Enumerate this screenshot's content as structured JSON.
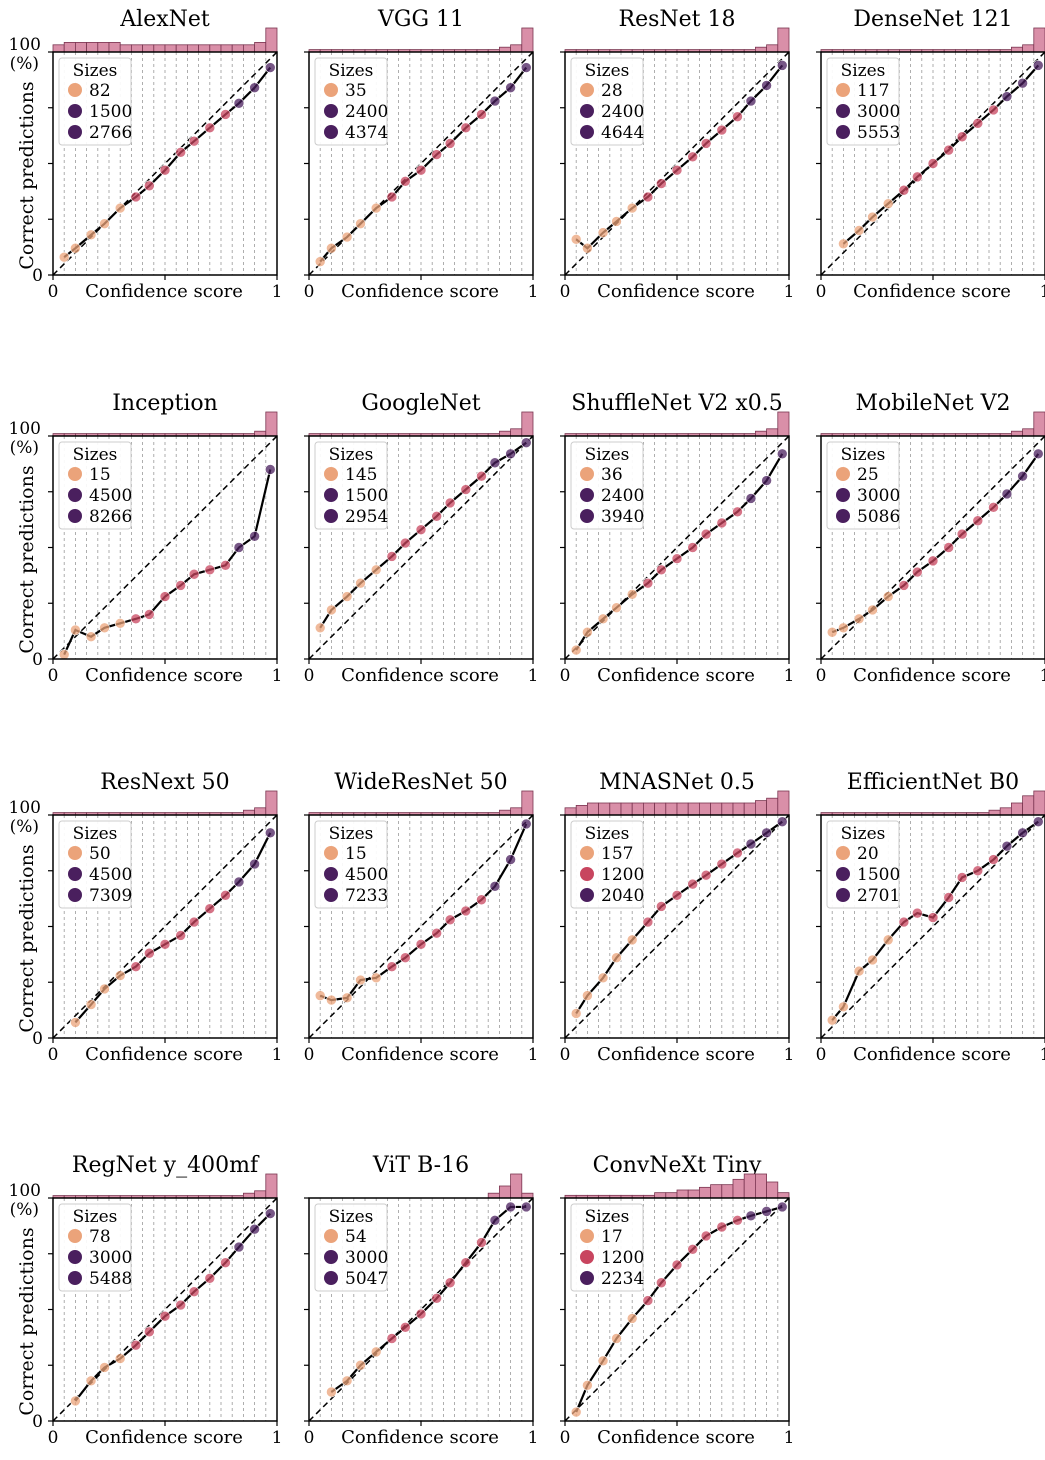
{
  "figure": {
    "common": {
      "xlabel": "Confidence score",
      "ylabel": "Correct predictions",
      "yunit": "(%)",
      "xtick_labels": [
        "0",
        "1"
      ],
      "ytick_labels": [
        "0",
        "100"
      ],
      "legend_title": "Sizes",
      "xlim": [
        0,
        1
      ],
      "ylim": [
        0,
        100
      ],
      "bins": 20
    },
    "colors": {
      "histogram": "#d98fa8",
      "curve": "#000000",
      "diagonal": "#000000",
      "bin_lines": "#9a9a9a",
      "size_small": "#eba37a",
      "size_mid": "#c8455f",
      "size_large": "#4a1f5e"
    }
  },
  "chart_data": [
    {
      "type": "line",
      "title": "AlexNet",
      "legend_sizes": [
        "82",
        "1500",
        "2766"
      ],
      "legend_colors": [
        "#eba37a",
        "#4a1f5e",
        "#4a1f5e"
      ],
      "x": [
        0.05,
        0.1,
        0.17,
        0.23,
        0.3,
        0.37,
        0.43,
        0.5,
        0.57,
        0.63,
        0.7,
        0.77,
        0.83,
        0.9,
        0.97
      ],
      "y": [
        8,
        12,
        18,
        23,
        30,
        35,
        40,
        47,
        55,
        60,
        66,
        72,
        77,
        84,
        93
      ],
      "hist": [
        3,
        4,
        4,
        4,
        4,
        4,
        3,
        3,
        3,
        3,
        3,
        3,
        3,
        3,
        3,
        3,
        3,
        3,
        4,
        10
      ]
    },
    {
      "type": "line",
      "title": "VGG 11",
      "legend_sizes": [
        "35",
        "2400",
        "4374"
      ],
      "legend_colors": [
        "#eba37a",
        "#4a1f5e",
        "#4a1f5e"
      ],
      "x": [
        0.05,
        0.1,
        0.17,
        0.23,
        0.3,
        0.37,
        0.43,
        0.5,
        0.57,
        0.63,
        0.7,
        0.77,
        0.83,
        0.9,
        0.97
      ],
      "y": [
        6,
        12,
        17,
        23,
        30,
        35,
        42,
        47,
        54,
        59,
        66,
        72,
        78,
        84,
        93
      ],
      "hist": [
        1,
        1,
        1,
        1,
        1,
        1,
        1,
        1,
        1,
        1,
        1,
        1,
        1,
        1,
        1,
        1,
        1,
        2,
        3,
        10
      ]
    },
    {
      "type": "line",
      "title": "ResNet 18",
      "legend_sizes": [
        "28",
        "2400",
        "4644"
      ],
      "legend_colors": [
        "#eba37a",
        "#4a1f5e",
        "#4a1f5e"
      ],
      "x": [
        0.05,
        0.1,
        0.17,
        0.23,
        0.3,
        0.37,
        0.43,
        0.5,
        0.57,
        0.63,
        0.7,
        0.77,
        0.83,
        0.9,
        0.97
      ],
      "y": [
        16,
        12,
        19,
        24,
        30,
        35,
        41,
        47,
        53,
        59,
        65,
        71,
        78,
        85,
        94
      ],
      "hist": [
        1,
        1,
        1,
        1,
        1,
        1,
        1,
        1,
        1,
        1,
        1,
        1,
        1,
        1,
        1,
        1,
        1,
        2,
        3,
        10
      ]
    },
    {
      "type": "line",
      "title": "DenseNet 121",
      "legend_sizes": [
        "117",
        "3000",
        "5553"
      ],
      "legend_colors": [
        "#eba37a",
        "#4a1f5e",
        "#4a1f5e"
      ],
      "x": [
        0.1,
        0.17,
        0.23,
        0.3,
        0.37,
        0.43,
        0.5,
        0.57,
        0.63,
        0.7,
        0.77,
        0.83,
        0.9,
        0.97
      ],
      "y": [
        14,
        20,
        26,
        32,
        38,
        44,
        50,
        56,
        62,
        68,
        74,
        80,
        86,
        94
      ],
      "hist": [
        1,
        1,
        1,
        1,
        1,
        1,
        1,
        1,
        1,
        1,
        1,
        1,
        1,
        1,
        1,
        1,
        1,
        2,
        3,
        10
      ]
    },
    {
      "type": "line",
      "title": "Inception",
      "legend_sizes": [
        "15",
        "4500",
        "8266"
      ],
      "legend_colors": [
        "#eba37a",
        "#4a1f5e",
        "#4a1f5e"
      ],
      "x": [
        0.05,
        0.1,
        0.17,
        0.23,
        0.3,
        0.37,
        0.43,
        0.5,
        0.57,
        0.63,
        0.7,
        0.77,
        0.83,
        0.9,
        0.97
      ],
      "y": [
        2,
        13,
        10,
        14,
        16,
        18,
        20,
        28,
        33,
        38,
        40,
        42,
        50,
        55,
        85
      ],
      "hist": [
        1,
        1,
        1,
        1,
        1,
        1,
        1,
        1,
        1,
        1,
        1,
        1,
        1,
        1,
        1,
        1,
        1,
        1,
        2,
        10
      ]
    },
    {
      "type": "line",
      "title": "GoogleNet",
      "legend_sizes": [
        "145",
        "1500",
        "2954"
      ],
      "legend_colors": [
        "#eba37a",
        "#4a1f5e",
        "#4a1f5e"
      ],
      "x": [
        0.05,
        0.1,
        0.17,
        0.23,
        0.3,
        0.37,
        0.43,
        0.5,
        0.57,
        0.63,
        0.7,
        0.77,
        0.83,
        0.9,
        0.97
      ],
      "y": [
        14,
        22,
        28,
        34,
        40,
        46,
        52,
        58,
        64,
        70,
        76,
        82,
        88,
        92,
        97
      ],
      "hist": [
        1,
        1,
        1,
        1,
        1,
        1,
        1,
        1,
        1,
        1,
        1,
        1,
        1,
        1,
        1,
        1,
        1,
        2,
        3,
        10
      ]
    },
    {
      "type": "line",
      "title": "ShuffleNet V2 x0.5",
      "legend_sizes": [
        "36",
        "2400",
        "3940"
      ],
      "legend_colors": [
        "#eba37a",
        "#4a1f5e",
        "#4a1f5e"
      ],
      "x": [
        0.05,
        0.1,
        0.17,
        0.23,
        0.3,
        0.37,
        0.43,
        0.5,
        0.57,
        0.63,
        0.7,
        0.77,
        0.83,
        0.9,
        0.97
      ],
      "y": [
        4,
        12,
        18,
        23,
        29,
        34,
        40,
        45,
        50,
        56,
        61,
        66,
        72,
        80,
        92
      ],
      "hist": [
        1,
        1,
        1,
        1,
        1,
        1,
        1,
        1,
        1,
        1,
        1,
        1,
        1,
        1,
        1,
        1,
        1,
        2,
        3,
        10
      ]
    },
    {
      "type": "line",
      "title": "MobileNet V2",
      "legend_sizes": [
        "25",
        "3000",
        "5086"
      ],
      "legend_colors": [
        "#eba37a",
        "#4a1f5e",
        "#4a1f5e"
      ],
      "x": [
        0.05,
        0.1,
        0.17,
        0.23,
        0.3,
        0.37,
        0.43,
        0.5,
        0.57,
        0.63,
        0.7,
        0.77,
        0.83,
        0.9,
        0.97
      ],
      "y": [
        12,
        14,
        18,
        22,
        28,
        33,
        39,
        44,
        50,
        56,
        62,
        68,
        74,
        82,
        92
      ],
      "hist": [
        1,
        1,
        1,
        1,
        1,
        1,
        1,
        1,
        1,
        1,
        1,
        1,
        1,
        1,
        1,
        1,
        1,
        2,
        3,
        10
      ]
    },
    {
      "type": "line",
      "title": "ResNext 50",
      "legend_sizes": [
        "50",
        "4500",
        "7309"
      ],
      "legend_colors": [
        "#eba37a",
        "#4a1f5e",
        "#4a1f5e"
      ],
      "x": [
        0.1,
        0.17,
        0.23,
        0.3,
        0.37,
        0.43,
        0.5,
        0.57,
        0.63,
        0.7,
        0.77,
        0.83,
        0.9,
        0.97
      ],
      "y": [
        7,
        15,
        22,
        28,
        32,
        38,
        42,
        46,
        52,
        58,
        64,
        70,
        78,
        92
      ],
      "hist": [
        1,
        1,
        1,
        1,
        1,
        1,
        1,
        1,
        1,
        1,
        1,
        1,
        1,
        1,
        1,
        1,
        1,
        2,
        3,
        10
      ]
    },
    {
      "type": "line",
      "title": "WideResNet 50",
      "legend_sizes": [
        "15",
        "4500",
        "7233"
      ],
      "legend_colors": [
        "#eba37a",
        "#4a1f5e",
        "#4a1f5e"
      ],
      "x": [
        0.05,
        0.1,
        0.17,
        0.23,
        0.3,
        0.37,
        0.43,
        0.5,
        0.57,
        0.63,
        0.7,
        0.77,
        0.83,
        0.9,
        0.97
      ],
      "y": [
        19,
        17,
        18,
        26,
        27,
        32,
        36,
        42,
        47,
        53,
        57,
        62,
        68,
        80,
        96
      ],
      "hist": [
        1,
        1,
        1,
        1,
        1,
        1,
        1,
        1,
        1,
        1,
        1,
        1,
        1,
        1,
        1,
        1,
        1,
        2,
        3,
        10
      ]
    },
    {
      "type": "line",
      "title": "MNASNet 0.5",
      "legend_sizes": [
        "157",
        "1200",
        "2040"
      ],
      "legend_colors": [
        "#eba37a",
        "#c8455f",
        "#4a1f5e"
      ],
      "x": [
        0.05,
        0.1,
        0.17,
        0.23,
        0.3,
        0.37,
        0.43,
        0.5,
        0.57,
        0.63,
        0.7,
        0.77,
        0.83,
        0.9,
        0.97
      ],
      "y": [
        11,
        19,
        27,
        36,
        44,
        52,
        59,
        64,
        69,
        73,
        78,
        83,
        87,
        92,
        97
      ],
      "hist": [
        3,
        4,
        5,
        5,
        5,
        5,
        5,
        5,
        5,
        5,
        5,
        5,
        5,
        5,
        5,
        5,
        5,
        6,
        7,
        10
      ]
    },
    {
      "type": "line",
      "title": "EfficientNet B0",
      "legend_sizes": [
        "20",
        "1500",
        "2701"
      ],
      "legend_colors": [
        "#eba37a",
        "#4a1f5e",
        "#4a1f5e"
      ],
      "x": [
        0.05,
        0.1,
        0.17,
        0.23,
        0.3,
        0.37,
        0.43,
        0.5,
        0.57,
        0.63,
        0.7,
        0.77,
        0.83,
        0.9,
        0.97
      ],
      "y": [
        8,
        14,
        30,
        35,
        44,
        52,
        56,
        54,
        63,
        72,
        75,
        80,
        86,
        92,
        97
      ],
      "hist": [
        1,
        1,
        1,
        1,
        1,
        1,
        1,
        1,
        1,
        1,
        1,
        1,
        1,
        1,
        1,
        2,
        3,
        5,
        8,
        10
      ]
    },
    {
      "type": "line",
      "title": "RegNet y_400mf",
      "legend_sizes": [
        "78",
        "3000",
        "5488"
      ],
      "legend_colors": [
        "#eba37a",
        "#4a1f5e",
        "#4a1f5e"
      ],
      "x": [
        0.1,
        0.17,
        0.23,
        0.3,
        0.37,
        0.43,
        0.5,
        0.57,
        0.63,
        0.7,
        0.77,
        0.83,
        0.9,
        0.97
      ],
      "y": [
        9,
        18,
        24,
        28,
        34,
        40,
        47,
        52,
        58,
        64,
        71,
        78,
        86,
        93
      ],
      "hist": [
        1,
        1,
        1,
        1,
        1,
        1,
        1,
        1,
        1,
        1,
        1,
        1,
        1,
        1,
        1,
        1,
        1,
        2,
        3,
        10
      ]
    },
    {
      "type": "line",
      "title": "ViT B-16",
      "legend_sizes": [
        "54",
        "3000",
        "5047"
      ],
      "legend_colors": [
        "#eba37a",
        "#4a1f5e",
        "#4a1f5e"
      ],
      "x": [
        0.1,
        0.17,
        0.23,
        0.3,
        0.37,
        0.43,
        0.5,
        0.57,
        0.63,
        0.7,
        0.77,
        0.83,
        0.9,
        0.97
      ],
      "y": [
        13,
        18,
        25,
        31,
        37,
        42,
        48,
        55,
        62,
        71,
        80,
        90,
        96,
        96
      ],
      "hist": [
        0,
        0,
        0,
        0,
        0,
        0,
        0,
        0,
        0,
        0,
        0,
        0,
        0,
        0,
        0,
        0,
        2,
        5,
        10,
        2
      ]
    },
    {
      "type": "line",
      "title": "ConvNeXt Tiny",
      "legend_sizes": [
        "17",
        "1200",
        "2234"
      ],
      "legend_colors": [
        "#eba37a",
        "#c8455f",
        "#4a1f5e"
      ],
      "x": [
        0.05,
        0.1,
        0.17,
        0.23,
        0.3,
        0.37,
        0.43,
        0.5,
        0.57,
        0.63,
        0.7,
        0.77,
        0.83,
        0.9,
        0.97
      ],
      "y": [
        4,
        16,
        27,
        37,
        46,
        54,
        62,
        70,
        77,
        83,
        87,
        90,
        92,
        94,
        96
      ],
      "hist": [
        1,
        1,
        1,
        1,
        1,
        1,
        1,
        1,
        2,
        2,
        3,
        3,
        4,
        5,
        5,
        7,
        9,
        9,
        6,
        2
      ]
    }
  ]
}
